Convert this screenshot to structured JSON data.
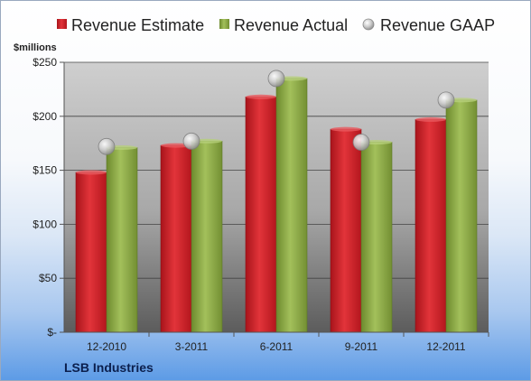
{
  "chart_data": {
    "type": "bar",
    "categories": [
      "12-2010",
      "3-2011",
      "6-2011",
      "9-2011",
      "12-2011"
    ],
    "series": [
      {
        "name": "Revenue Estimate",
        "kind": "bar",
        "color": "#cc1f26",
        "values": [
          148,
          173,
          218,
          188,
          197
        ]
      },
      {
        "name": "Revenue Actual",
        "kind": "bar",
        "color": "#8fad45",
        "values": [
          171,
          177,
          235,
          176,
          215
        ]
      },
      {
        "name": "Revenue GAAP",
        "kind": "marker",
        "color": "#c8c8c8",
        "values": [
          172,
          177,
          235,
          176,
          215
        ]
      }
    ],
    "ylabel": "$millions",
    "ylim": [
      0,
      250
    ],
    "yticks": [
      0,
      50,
      100,
      150,
      200,
      250
    ],
    "ytick_labels": [
      "$-",
      "$50",
      "$100",
      "$150",
      "$200",
      "$250"
    ],
    "grid": true,
    "legend_position": "top",
    "footer": "LSB Industries"
  }
}
